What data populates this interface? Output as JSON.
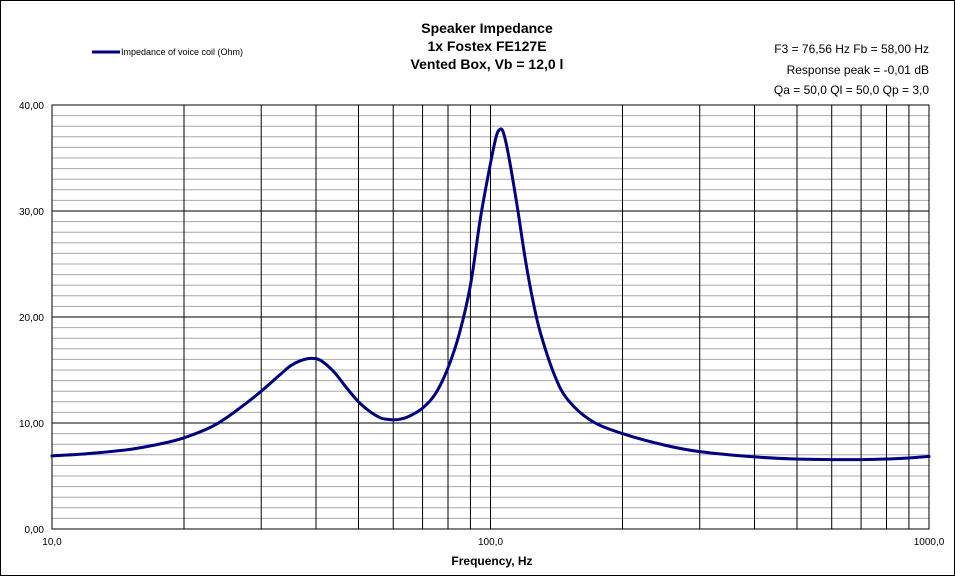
{
  "chart_data": {
    "type": "line",
    "title_lines": [
      "Speaker Impedance",
      "1x Fostex FE127E",
      "Vented Box, Vb = 12,0 l"
    ],
    "info_lines": [
      "F3 = 76,56 Hz  Fb = 58,00 Hz",
      "Response  peak = -0,01 dB",
      "Qa = 50,0  Ql = 50,0  Qp = 3,0"
    ],
    "xlabel": "Frequency, Hz",
    "ylabel": "",
    "x_scale": "log",
    "xlim": [
      10,
      1000
    ],
    "ylim": [
      0,
      40
    ],
    "x_tick_labels": [
      {
        "value": 10,
        "label": "10,0"
      },
      {
        "value": 100,
        "label": "100,0"
      },
      {
        "value": 1000,
        "label": "1000,0"
      }
    ],
    "y_tick_labels": [
      {
        "value": 0,
        "label": "0,00"
      },
      {
        "value": 10,
        "label": "10,00"
      },
      {
        "value": 20,
        "label": "20,00"
      },
      {
        "value": 30,
        "label": "30,00"
      },
      {
        "value": 40,
        "label": "40,00"
      }
    ],
    "y_minor_step": 1,
    "grid": true,
    "legend_position": "top-left",
    "series": [
      {
        "name": "Impedance of voice coil (Ohm)",
        "color": "#000080",
        "points": [
          [
            10,
            6.9
          ],
          [
            12,
            7.1
          ],
          [
            15,
            7.5
          ],
          [
            18,
            8.1
          ],
          [
            20,
            8.6
          ],
          [
            23,
            9.6
          ],
          [
            25,
            10.5
          ],
          [
            28,
            12.0
          ],
          [
            30,
            13.0
          ],
          [
            33,
            14.5
          ],
          [
            35,
            15.4
          ],
          [
            37,
            15.9
          ],
          [
            39,
            16.1
          ],
          [
            41,
            15.9
          ],
          [
            44,
            14.8
          ],
          [
            47,
            13.3
          ],
          [
            50,
            12.0
          ],
          [
            53,
            11.1
          ],
          [
            56,
            10.5
          ],
          [
            58,
            10.35
          ],
          [
            60,
            10.3
          ],
          [
            62,
            10.35
          ],
          [
            65,
            10.6
          ],
          [
            70,
            11.4
          ],
          [
            75,
            12.8
          ],
          [
            80,
            15.2
          ],
          [
            85,
            18.5
          ],
          [
            90,
            23.0
          ],
          [
            95,
            29.5
          ],
          [
            100,
            34.5
          ],
          [
            103,
            37.0
          ],
          [
            105,
            37.7
          ],
          [
            107,
            37.4
          ],
          [
            110,
            35.2
          ],
          [
            115,
            30.5
          ],
          [
            120,
            25.5
          ],
          [
            125,
            21.5
          ],
          [
            130,
            18.5
          ],
          [
            140,
            14.5
          ],
          [
            150,
            12.2
          ],
          [
            170,
            10.2
          ],
          [
            200,
            9.0
          ],
          [
            250,
            7.9
          ],
          [
            300,
            7.3
          ],
          [
            400,
            6.8
          ],
          [
            500,
            6.6
          ],
          [
            600,
            6.55
          ],
          [
            700,
            6.55
          ],
          [
            800,
            6.6
          ],
          [
            900,
            6.7
          ],
          [
            1000,
            6.85
          ]
        ]
      }
    ]
  }
}
